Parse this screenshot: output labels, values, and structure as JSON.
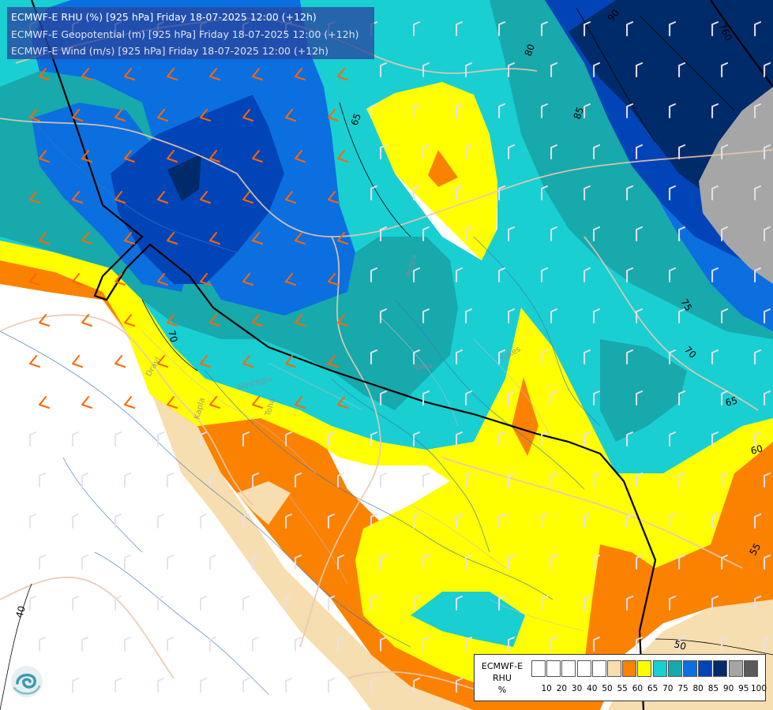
{
  "header": {
    "line1": "ECMWF-E RHU (%) [925 hPa] Friday 18-07-2025 12:00 (+12h)",
    "line2": "ECMWF-E Geopotential (m) [925 hPa] Friday 18-07-2025 12:00 (+12h)",
    "line3": "ECMWF-E Wind (m/s) [925 hPa] Friday 18-07-2025 12:00 (+12h)"
  },
  "legend": {
    "line1": "ECMWF-E",
    "line2": "RHU",
    "line3": "%",
    "ticks": [
      "10",
      "20",
      "30",
      "40",
      "50",
      "55",
      "60",
      "65",
      "70",
      "75",
      "80",
      "85",
      "90",
      "95",
      "100"
    ],
    "colors": [
      "#ffffff",
      "#ffffff",
      "#ffffff",
      "#ffffff",
      "#ffffff",
      "#f7deb0",
      "#fb8200",
      "#ffff00",
      "#19cfd1",
      "#17a9ac",
      "#0b6fe0",
      "#0044b8",
      "#002b6a",
      "#a6a6a6",
      "#5a5a5a"
    ]
  },
  "contour_labels": {
    "c65_top": "65",
    "c80": "80",
    "c85": "85",
    "c90": "90",
    "c760": "760",
    "c70_left": "70",
    "c75": "75",
    "c70_right": "70",
    "c65_right": "65",
    "c60": "60",
    "c55": "55",
    "c50": "50",
    "c40": "40"
  },
  "place_labels": {
    "p1": "Dravl",
    "p2": "Gostoglu",
    "p3": "Toha",
    "p4": "Kapla",
    "p5": "Pošpa",
    "p6": "Fakes",
    "p7": "Sana"
  },
  "colors": {
    "rhu_55": "#f7deb0",
    "rhu_60": "#fb8200",
    "rhu_65": "#ffff00",
    "rhu_70": "#19cfd1",
    "rhu_75": "#17a9ac",
    "rhu_80": "#0b6fe0",
    "rhu_85": "#0044b8",
    "rhu_90": "#002b6a",
    "rhu_95": "#a6a6a6",
    "border": "#e8c8b0",
    "river": "#3a78b8",
    "barb_orange": "#ff6600",
    "barb_light": "#e8e0ea"
  }
}
